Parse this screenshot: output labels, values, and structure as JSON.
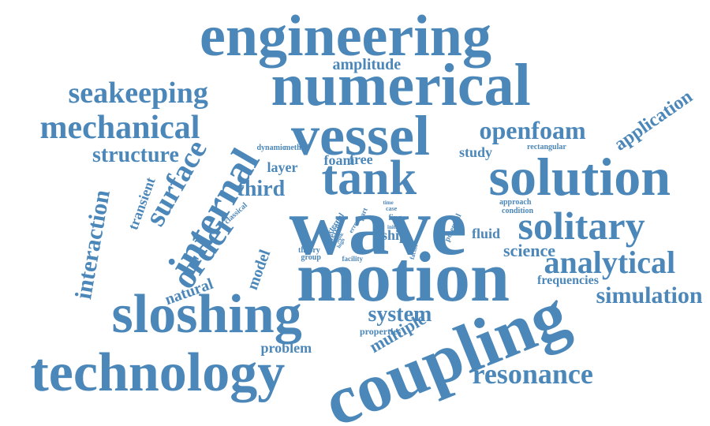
{
  "word_color": "#4c87b9",
  "background": "#ffffff",
  "words": [
    {
      "text": "engineering",
      "weight": 7
    },
    {
      "text": "numerical",
      "weight": 7
    },
    {
      "text": "amplitude",
      "weight": 2
    },
    {
      "text": "seakeeping",
      "weight": 4
    },
    {
      "text": "vessel",
      "weight": 6
    },
    {
      "text": "openfoam",
      "weight": 4
    },
    {
      "text": "application",
      "weight": 3
    },
    {
      "text": "mechanical",
      "weight": 5
    },
    {
      "text": "structure",
      "weight": 3
    },
    {
      "text": "surface",
      "weight": 4
    },
    {
      "text": "internal",
      "weight": 5
    },
    {
      "text": "dynamic",
      "weight": 1
    },
    {
      "text": "method",
      "weight": 1
    },
    {
      "text": "free",
      "weight": 2
    },
    {
      "text": "foam",
      "weight": 2
    },
    {
      "text": "study",
      "weight": 2
    },
    {
      "text": "rectangular",
      "weight": 1
    },
    {
      "text": "layer",
      "weight": 2
    },
    {
      "text": "tank",
      "weight": 6
    },
    {
      "text": "solution",
      "weight": 7
    },
    {
      "text": "third",
      "weight": 3
    },
    {
      "text": "transient",
      "weight": 2
    },
    {
      "text": "interaction",
      "weight": 3
    },
    {
      "text": "classical",
      "weight": 1
    },
    {
      "text": "different",
      "weight": 1
    },
    {
      "text": "external",
      "weight": 1
    },
    {
      "text": "error",
      "weight": 1
    },
    {
      "text": "time",
      "weight": 1
    },
    {
      "text": "case",
      "weight": 1
    },
    {
      "text": "fing",
      "weight": 1
    },
    {
      "text": "initial",
      "weight": 1
    },
    {
      "text": "part",
      "weight": 1
    },
    {
      "text": "high",
      "weight": 1
    },
    {
      "text": "bulk",
      "weight": 1
    },
    {
      "text": "approach",
      "weight": 1
    },
    {
      "text": "condition",
      "weight": 1
    },
    {
      "text": "potential",
      "weight": 1
    },
    {
      "text": "wave",
      "weight": 8
    },
    {
      "text": "solitary",
      "weight": 5
    },
    {
      "text": "order",
      "weight": 4
    },
    {
      "text": "model",
      "weight": 2
    },
    {
      "text": "theory",
      "weight": 1
    },
    {
      "text": "group",
      "weight": 1
    },
    {
      "text": "facility",
      "weight": 1
    },
    {
      "text": "factor",
      "weight": 1
    },
    {
      "text": "ship",
      "weight": 2
    },
    {
      "text": "fluid",
      "weight": 2
    },
    {
      "text": "science",
      "weight": 3
    },
    {
      "text": "analytical",
      "weight": 4
    },
    {
      "text": "motion",
      "weight": 7
    },
    {
      "text": "frequencies",
      "weight": 2
    },
    {
      "text": "simulation",
      "weight": 3
    },
    {
      "text": "natural",
      "weight": 2
    },
    {
      "text": "sloshing",
      "weight": 7
    },
    {
      "text": "system",
      "weight": 3
    },
    {
      "text": "properties",
      "weight": 1
    },
    {
      "text": "multiple",
      "weight": 2
    },
    {
      "text": "problem",
      "weight": 2
    },
    {
      "text": "technology",
      "weight": 7
    },
    {
      "text": "coupling",
      "weight": 7
    },
    {
      "text": "resonance",
      "weight": 4
    }
  ]
}
